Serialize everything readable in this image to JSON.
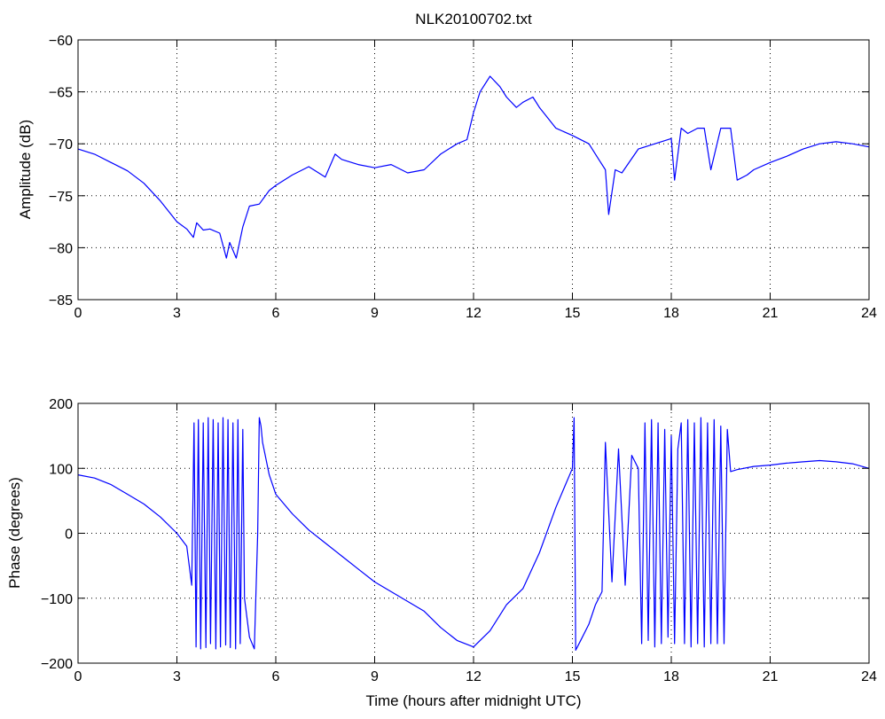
{
  "figure_title": "NLK20100702.txt",
  "chart_data": [
    {
      "type": "line",
      "title": "NLK20100702.txt",
      "xlabel": "",
      "ylabel": "Amplitude (dB)",
      "xlim": [
        0,
        24
      ],
      "ylim": [
        -85,
        -60
      ],
      "xticks": [
        0,
        3,
        6,
        9,
        12,
        15,
        18,
        21,
        24
      ],
      "yticks": [
        -85,
        -80,
        -75,
        -70,
        -65,
        -60
      ],
      "grid": true,
      "line_color": "#0000ff",
      "series": [
        {
          "x": [
            0,
            0.5,
            1.0,
            1.5,
            2.0,
            2.5,
            3.0,
            3.3,
            3.5,
            3.6,
            3.8,
            4.0,
            4.3,
            4.5,
            4.6,
            4.8,
            5.0,
            5.2,
            5.5,
            5.8,
            6.0,
            6.5,
            7.0,
            7.3,
            7.5,
            7.8,
            8.0,
            8.5,
            9.0,
            9.5,
            10.0,
            10.5,
            11.0,
            11.5,
            11.8,
            12.0,
            12.2,
            12.5,
            12.8,
            13.0,
            13.3,
            13.5,
            13.8,
            14.0,
            14.5,
            15.0,
            15.5,
            15.8,
            16.0,
            16.1,
            16.3,
            16.5,
            17.0,
            17.5,
            18.0,
            18.1,
            18.3,
            18.5,
            18.8,
            19.0,
            19.2,
            19.5,
            19.8,
            20.0,
            20.3,
            20.5,
            21.0,
            21.5,
            22.0,
            22.5,
            23.0,
            23.5,
            24.0
          ],
          "y": [
            -70.5,
            -71.0,
            -71.8,
            -72.6,
            -73.8,
            -75.5,
            -77.5,
            -78.2,
            -79.0,
            -77.6,
            -78.3,
            -78.2,
            -78.6,
            -81.0,
            -79.5,
            -81.0,
            -78.0,
            -76.0,
            -75.8,
            -74.5,
            -74.0,
            -73.0,
            -72.2,
            -72.8,
            -73.2,
            -71.0,
            -71.5,
            -72.0,
            -72.3,
            -72.0,
            -72.8,
            -72.5,
            -71.0,
            -70.0,
            -69.6,
            -67.0,
            -65.0,
            -63.5,
            -64.5,
            -65.5,
            -66.5,
            -66.0,
            -65.5,
            -66.5,
            -68.5,
            -69.2,
            -70.0,
            -71.5,
            -72.5,
            -76.8,
            -72.5,
            -72.8,
            -70.5,
            -70.0,
            -69.5,
            -73.5,
            -68.5,
            -69.0,
            -68.5,
            -68.5,
            -72.5,
            -68.5,
            -68.5,
            -73.5,
            -73.0,
            -72.5,
            -71.8,
            -71.2,
            -70.5,
            -70.0,
            -69.8,
            -70.0,
            -70.3
          ]
        }
      ]
    },
    {
      "type": "line",
      "title": "",
      "xlabel": "Time (hours after midnight UTC)",
      "ylabel": "Phase (degrees)",
      "xlim": [
        0,
        24
      ],
      "ylim": [
        -200,
        200
      ],
      "xticks": [
        0,
        3,
        6,
        9,
        12,
        15,
        18,
        21,
        24
      ],
      "yticks": [
        -200,
        -100,
        0,
        100,
        200
      ],
      "grid": true,
      "line_color": "#0000ff",
      "series": [
        {
          "x": [
            0,
            0.5,
            1.0,
            1.5,
            2.0,
            2.5,
            3.0,
            3.3,
            3.45,
            3.52,
            3.58,
            3.65,
            3.72,
            3.8,
            3.88,
            3.95,
            4.02,
            4.1,
            4.18,
            4.25,
            4.32,
            4.4,
            4.48,
            4.55,
            4.62,
            4.7,
            4.78,
            4.85,
            4.92,
            5.0,
            5.05,
            5.2,
            5.35,
            5.45,
            5.5,
            5.55,
            5.6,
            5.8,
            6.0,
            6.5,
            7.0,
            7.5,
            8.0,
            8.5,
            9.0,
            9.5,
            10.0,
            10.5,
            11.0,
            11.5,
            12.0,
            12.5,
            13.0,
            13.5,
            14.0,
            14.5,
            15.0,
            15.05,
            15.1,
            15.15,
            15.3,
            15.5,
            15.7,
            15.9,
            16.0,
            16.2,
            16.4,
            16.6,
            16.8,
            17.0,
            17.1,
            17.2,
            17.3,
            17.4,
            17.5,
            17.6,
            17.7,
            17.8,
            17.9,
            18.0,
            18.1,
            18.2,
            18.3,
            18.4,
            18.5,
            18.6,
            18.7,
            18.8,
            18.9,
            19.0,
            19.1,
            19.2,
            19.3,
            19.4,
            19.5,
            19.6,
            19.7,
            19.8,
            20.0,
            20.5,
            21.0,
            21.5,
            22.0,
            22.5,
            23.0,
            23.5,
            24.0
          ],
          "y": [
            90,
            85,
            75,
            60,
            45,
            25,
            0,
            -20,
            -80,
            170,
            -175,
            175,
            -178,
            170,
            -176,
            178,
            -170,
            175,
            -178,
            170,
            -175,
            178,
            -172,
            175,
            -176,
            170,
            -178,
            175,
            -170,
            160,
            -100,
            -160,
            -178,
            0,
            178,
            165,
            140,
            90,
            60,
            30,
            5,
            -15,
            -35,
            -55,
            -75,
            -90,
            -105,
            -120,
            -145,
            -165,
            -175,
            -150,
            -110,
            -85,
            -30,
            40,
            100,
            178,
            -180,
            -175,
            -160,
            -140,
            -110,
            -90,
            140,
            -75,
            130,
            -80,
            120,
            100,
            -170,
            170,
            -165,
            175,
            -175,
            170,
            -170,
            160,
            -160,
            150,
            -170,
            130,
            170,
            -170,
            175,
            -175,
            170,
            -170,
            178,
            -175,
            170,
            -170,
            175,
            -170,
            165,
            -170,
            160,
            95,
            98,
            103,
            105,
            108,
            110,
            112,
            110,
            107,
            100
          ]
        }
      ]
    }
  ]
}
